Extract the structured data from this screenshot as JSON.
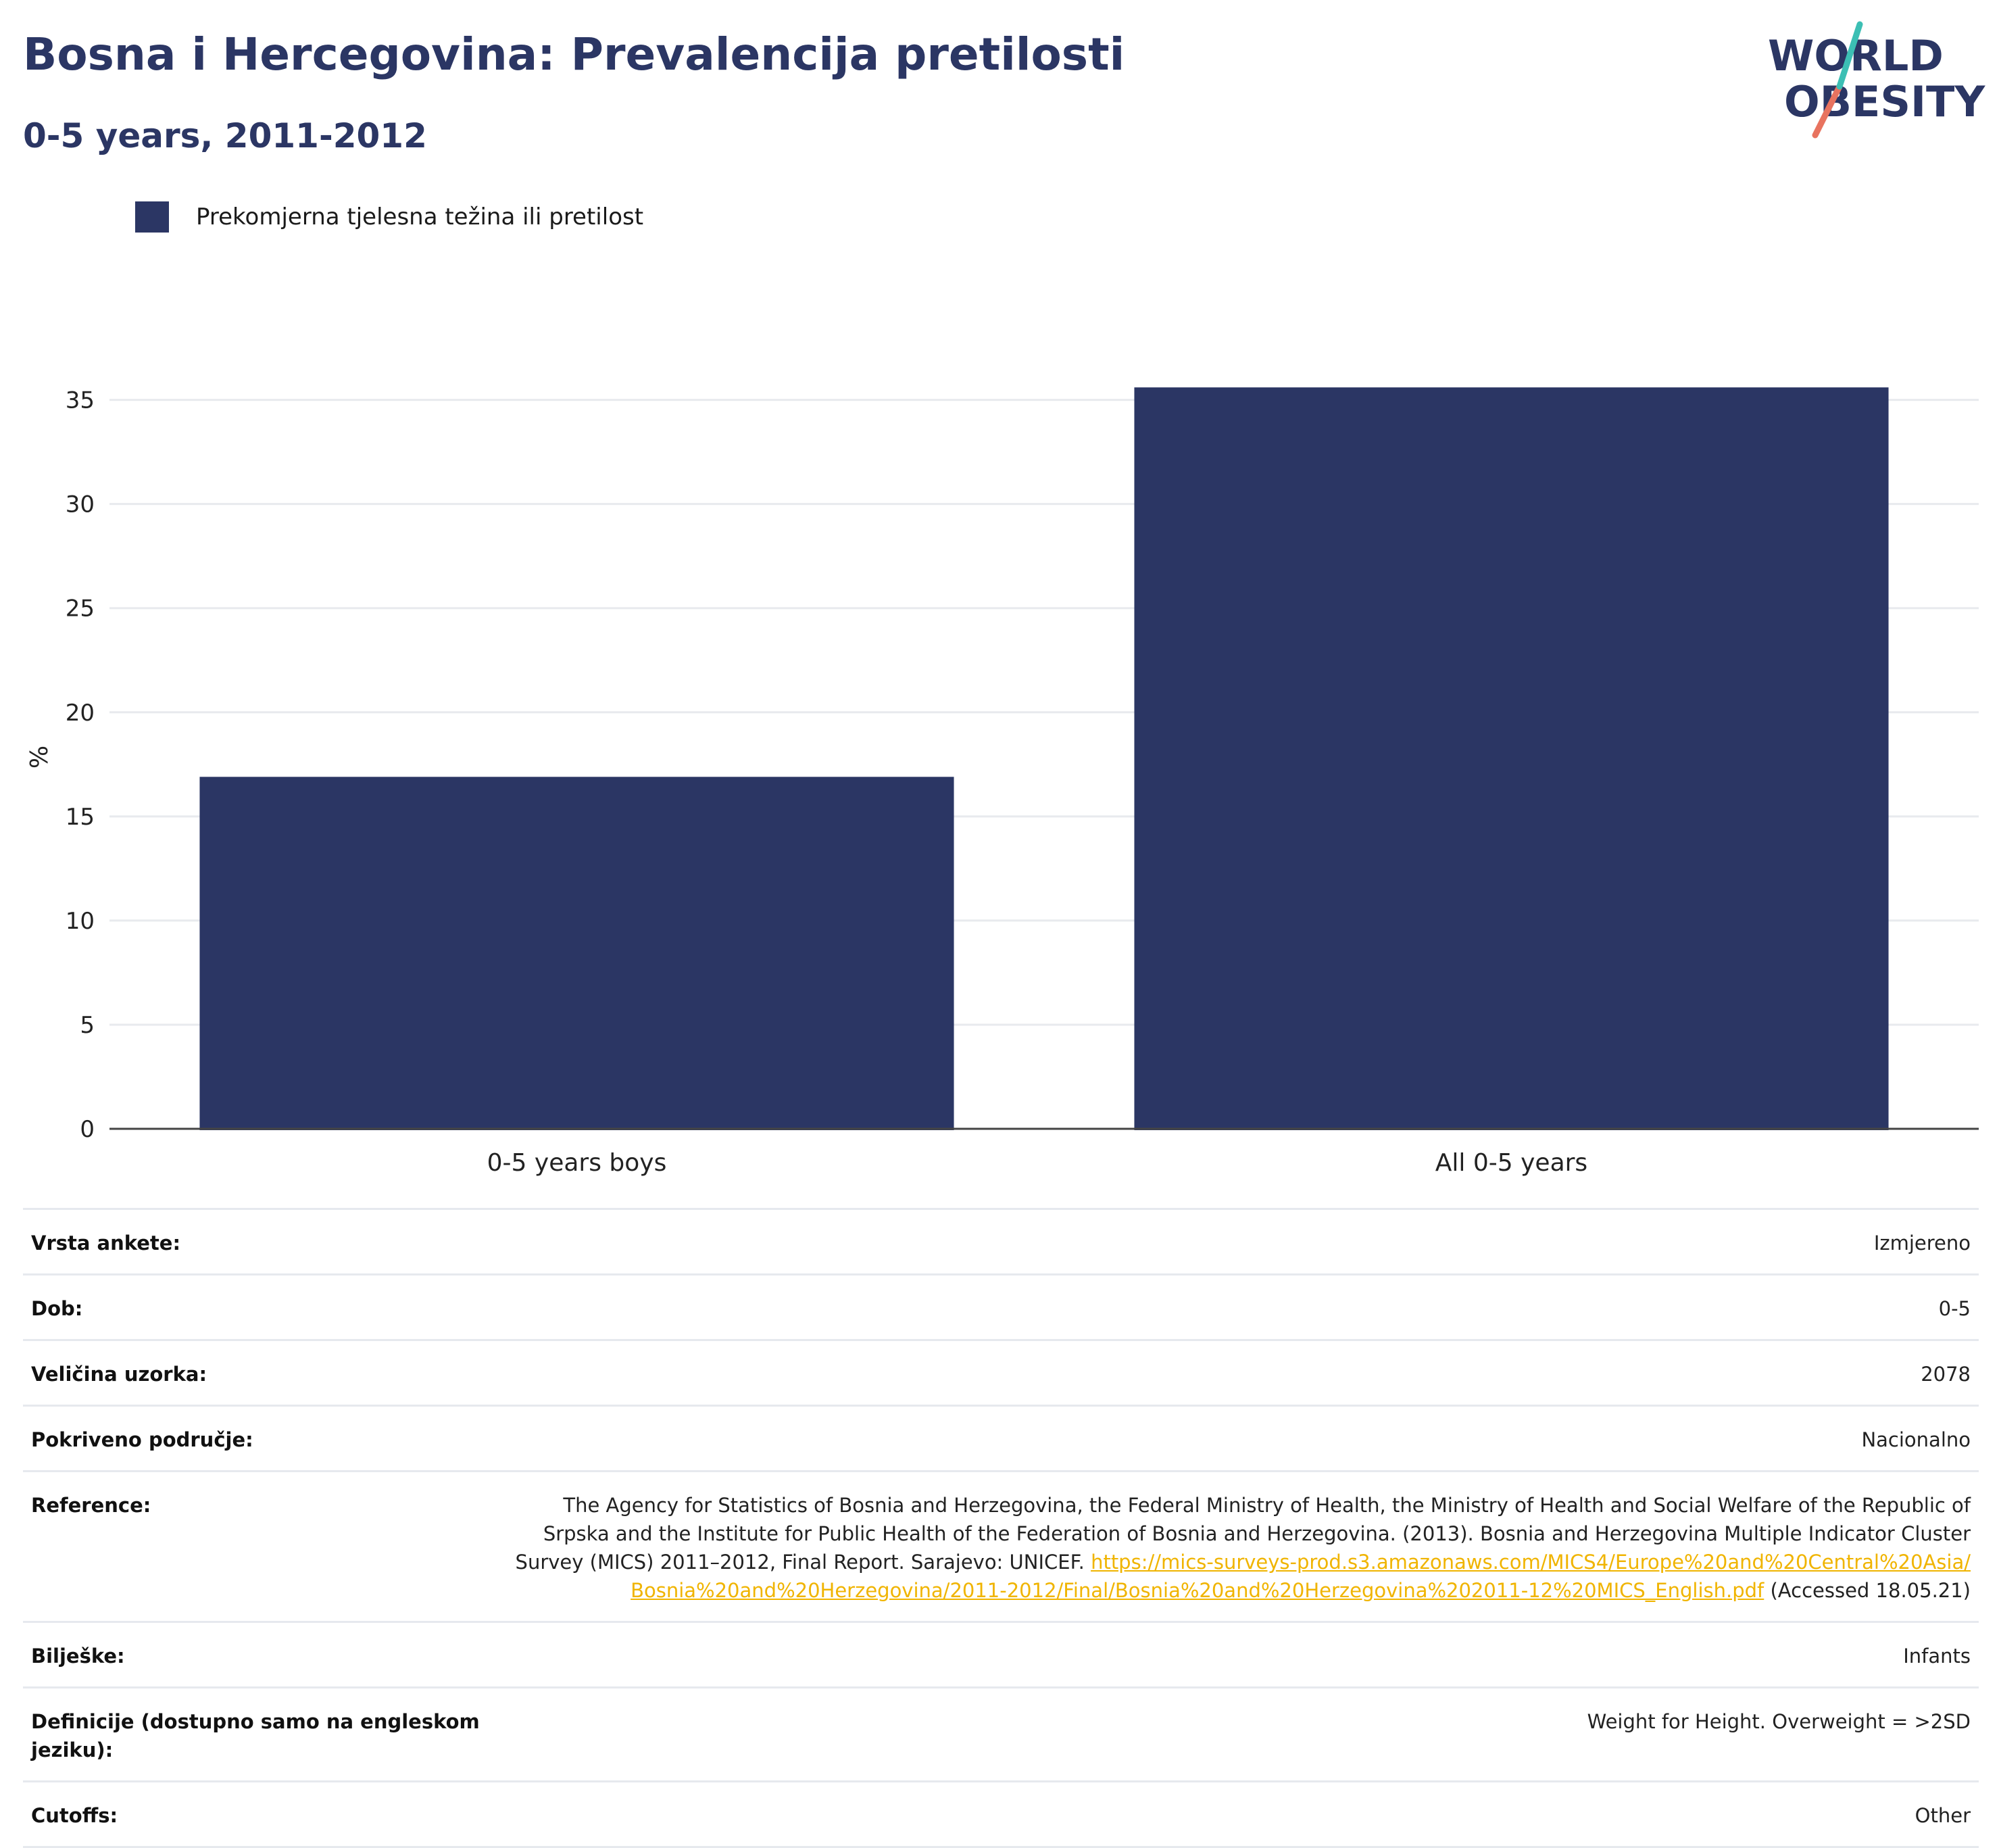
{
  "header": {
    "title": "Bosna i Hercegovina: Prevalencija pretilosti",
    "subtitle": "0-5 years, 2011-2012"
  },
  "logo": {
    "line1": "WORLD",
    "line2": "OBESITY"
  },
  "legend": {
    "label": "Prekomjerna tjelesna težina ili pretilost",
    "color": "#2b3664"
  },
  "chart_data": {
    "type": "bar",
    "categories": [
      "0-5 years boys",
      "All 0-5 years"
    ],
    "series": [
      {
        "name": "Prekomjerna tjelesna težina ili pretilost",
        "values": [
          16.9,
          35.6
        ],
        "color": "#2b3664"
      }
    ],
    "title": "Bosna i Hercegovina: Prevalencija pretilosti",
    "subtitle": "0-5 years, 2011-2012",
    "xlabel": "",
    "ylabel": "%",
    "ylim": [
      0,
      37
    ],
    "yticks": [
      0,
      5,
      10,
      15,
      20,
      25,
      30,
      35
    ],
    "grid": true,
    "legend_position": "top-left"
  },
  "meta": {
    "survey_type": {
      "label": "Vrsta ankete:",
      "value": "Izmjereno"
    },
    "age": {
      "label": "Dob:",
      "value": "0-5"
    },
    "sample_size": {
      "label": "Veličina uzorka:",
      "value": "2078"
    },
    "area": {
      "label": "Pokriveno područje:",
      "value": "Nacionalno"
    },
    "reference": {
      "label": "Reference:",
      "text": "The Agency for Statistics of Bosnia and Herzegovina, the Federal Ministry of Health, the Ministry of Health and Social Welfare of the Republic of Srpska and the Institute for Public Health of the Federation of Bosnia and Herzegovina. (2013). Bosnia and Herzegovina Multiple Indicator Cluster Survey (MICS) 2011–2012, Final Report. Sarajevo: UNICEF.",
      "link": "https://mics-surveys-prod.s3.amazonaws.com/MICS4/Europe%20and%20Central%20Asia/Bosnia%20and%20Herzegovina/2011-2012/Final/Bosnia%20and%20Herzegovina%202011-12%20MICS_English.pdf",
      "accessed": "(Accessed 18.05.21)"
    },
    "notes": {
      "label": "Bilješke:",
      "value": "Infants"
    },
    "definitions": {
      "label": "Definicije (dostupno samo na engleskom jeziku):",
      "value": "Weight for Height. Overweight = >2SD"
    },
    "cutoffs": {
      "label": "Cutoffs:",
      "value": "Other"
    }
  }
}
